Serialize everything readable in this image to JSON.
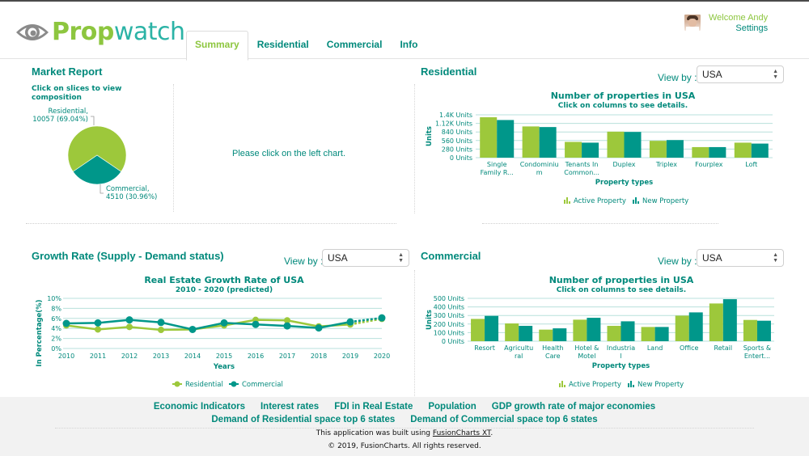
{
  "header": {
    "logo": {
      "part1": "Prop",
      "part2": "watch"
    },
    "tabs": [
      {
        "label": "Summary",
        "active": true
      },
      {
        "label": "Residential",
        "active": false
      },
      {
        "label": "Commercial",
        "active": false
      },
      {
        "label": "Info",
        "active": false
      }
    ],
    "user": {
      "welcome": "Welcome Andy",
      "settings": "Settings"
    }
  },
  "colors": {
    "green": "#9dc83b",
    "teal": "#00978a",
    "text_teal": "#00897b"
  },
  "market_report": {
    "title": "Market Report",
    "placeholder_message": "Please click on the left chart."
  },
  "residential_panel": {
    "title": "Residential",
    "viewby_label": "View by :",
    "select_value": "USA"
  },
  "growth_panel": {
    "title": "Growth Rate (Supply - Demand status)",
    "viewby_label": "View by :",
    "select_value": "USA"
  },
  "commercial_panel": {
    "title": "Commercial",
    "viewby_label": "View by :",
    "select_value": "USA"
  },
  "chart_data": [
    {
      "id": "market_pie",
      "type": "pie",
      "title": "Click on slices to view composition",
      "slices": [
        {
          "label": "Residential",
          "value": 10057,
          "percent": "69.04%",
          "display": [
            "Residential,",
            "10057 (69.04%)"
          ]
        },
        {
          "label": "Commercial",
          "value": 4510,
          "percent": "30.96%",
          "display": [
            "Commercial,",
            "4510 (30.96%)"
          ]
        }
      ]
    },
    {
      "id": "residential_bar",
      "type": "bar",
      "title": "Number of properties in USA",
      "subtitle": "Click on columns to see details.",
      "xlabel": "Property types",
      "ylabel": "Units",
      "ylim": [
        0,
        1400
      ],
      "yticks": [
        "0 Units",
        "280 Units",
        "560 Units",
        "840 Units",
        "1.12K Units",
        "1.4K Units"
      ],
      "ytick_values": [
        0,
        280,
        560,
        840,
        1120,
        1400
      ],
      "categories": [
        [
          "Single",
          "Family R..."
        ],
        [
          "Condominiu",
          "m"
        ],
        [
          "Tenants In",
          "Common..."
        ],
        [
          "Duplex"
        ],
        [
          "Triplex"
        ],
        [
          "Fourplex"
        ],
        [
          "Loft"
        ]
      ],
      "series": [
        {
          "name": "Active Property",
          "values": [
            1320,
            1020,
            515,
            850,
            550,
            345,
            490
          ]
        },
        {
          "name": "New Property",
          "values": [
            1230,
            1000,
            490,
            840,
            575,
            345,
            460
          ]
        }
      ],
      "legend": "bottom"
    },
    {
      "id": "growth_line",
      "type": "line",
      "title": "Real Estate Growth Rate of USA",
      "subtitle": "2010 - 2020 (predicted)",
      "xlabel": "Years",
      "ylabel": "In Percentage(%)",
      "ylim": [
        0,
        10
      ],
      "yticks": [
        "0%",
        "2%",
        "4%",
        "6%",
        "8%",
        "10%"
      ],
      "ytick_values": [
        0,
        2,
        4,
        6,
        8,
        10
      ],
      "x": [
        "2010",
        "2011",
        "2012",
        "2013",
        "2014",
        "2015",
        "2016",
        "2017",
        "2018",
        "2019",
        "2020"
      ],
      "predicted_from_index": 9,
      "series": [
        {
          "name": "Residential",
          "values": [
            4.6,
            3.8,
            4.3,
            3.7,
            3.8,
            4.6,
            5.7,
            5.6,
            4.4,
            4.8,
            5.9
          ]
        },
        {
          "name": "Commercial",
          "values": [
            5.0,
            5.1,
            5.7,
            5.2,
            3.8,
            5.1,
            4.8,
            4.5,
            4.1,
            5.3,
            6.1
          ]
        }
      ],
      "legend": "bottom"
    },
    {
      "id": "commercial_bar",
      "type": "bar",
      "title": "Number of properties in USA",
      "subtitle": "Click on columns to see details.",
      "xlabel": "Property types",
      "ylabel": "Units",
      "ylim": [
        0,
        500
      ],
      "yticks": [
        "0 Units",
        "100 Units",
        "200 Units",
        "300 Units",
        "400 Units",
        "500 Units"
      ],
      "ytick_values": [
        0,
        100,
        200,
        300,
        400,
        500
      ],
      "categories": [
        [
          "Resort"
        ],
        [
          "Agricultu",
          "ral"
        ],
        [
          "Health",
          "Care"
        ],
        [
          "Hotel &",
          "Motel"
        ],
        [
          "Industria",
          "l"
        ],
        [
          "Land"
        ],
        [
          "Office"
        ],
        [
          "Retail"
        ],
        [
          "Sports &",
          "Entert..."
        ]
      ],
      "series": [
        {
          "name": "Active Property",
          "values": [
            260,
            207,
            135,
            251,
            179,
            166,
            298,
            440,
            248
          ]
        },
        {
          "name": "New Property",
          "values": [
            295,
            179,
            150,
            273,
            232,
            166,
            336,
            490,
            239
          ]
        }
      ],
      "legend": "bottom"
    }
  ],
  "footer": {
    "links_row1": [
      "Economic Indicators",
      "Interest rates",
      "FDI in Real Estate",
      "Population",
      "GDP growth rate of major economies"
    ],
    "links_row2": [
      "Demand of Residential space top 6 states",
      "Demand of Commercial space top 6 states"
    ],
    "built_prefix": "This application was built using ",
    "built_link": "FusionCharts XT",
    "built_suffix": ".",
    "copyright": "© 2019, FusionCharts. All rights reserved."
  }
}
